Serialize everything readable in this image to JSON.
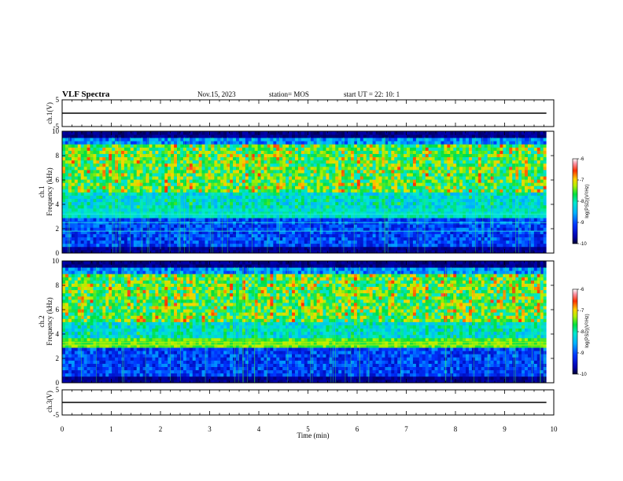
{
  "header": {
    "title": "VLF Spectra",
    "date": "Nov.15, 2023",
    "station": "station= MOS",
    "start": "start  UT =   22: 10: 1"
  },
  "chart_data": [
    {
      "type": "line",
      "name": "ch1-waveform",
      "ylabel": "ch.1(V)",
      "ylim": [
        -5,
        5
      ],
      "yticks": [
        "5",
        "-5"
      ],
      "xlim": [
        0,
        10
      ],
      "baseline": 0
    },
    {
      "type": "heatmap",
      "name": "ch1-spectrogram",
      "ylabel": "Frequency (kHz)",
      "ylabel2": "ch.1",
      "ylim": [
        0,
        10
      ],
      "yticks": [
        "0",
        "2",
        "4",
        "6",
        "8",
        "10"
      ],
      "xlim": [
        0,
        10
      ],
      "data_end_min": 9.85,
      "colorbar": {
        "label": "log(PSD)(V²/Hz)",
        "range": [
          -10,
          -6
        ],
        "ticks": [
          "-6",
          "-7",
          "-8",
          "-9",
          "-10"
        ]
      }
    },
    {
      "type": "heatmap",
      "name": "ch2-spectrogram",
      "ylabel": "Frequency (kHz)",
      "ylabel2": "ch.2",
      "ylim": [
        0,
        10
      ],
      "yticks": [
        "0",
        "2",
        "4",
        "6",
        "8",
        "10"
      ],
      "xlim": [
        0,
        10
      ],
      "data_end_min": 9.85,
      "colorbar": {
        "label": "log(PSD)(V²/Hz)",
        "range": [
          -10,
          -6
        ],
        "ticks": [
          "-6",
          "-7",
          "-8",
          "-9",
          "-10"
        ]
      }
    },
    {
      "type": "line",
      "name": "ch3-waveform",
      "ylabel": "ch.3(V)",
      "ylim": [
        -5,
        5
      ],
      "yticks": [
        "5",
        "-5"
      ],
      "xlim": [
        0,
        10
      ],
      "baseline": 0
    }
  ],
  "xaxis": {
    "label": "Time  (min)",
    "ticks": [
      "0",
      "1",
      "2",
      "3",
      "4",
      "5",
      "6",
      "7",
      "8",
      "9",
      "10"
    ]
  }
}
